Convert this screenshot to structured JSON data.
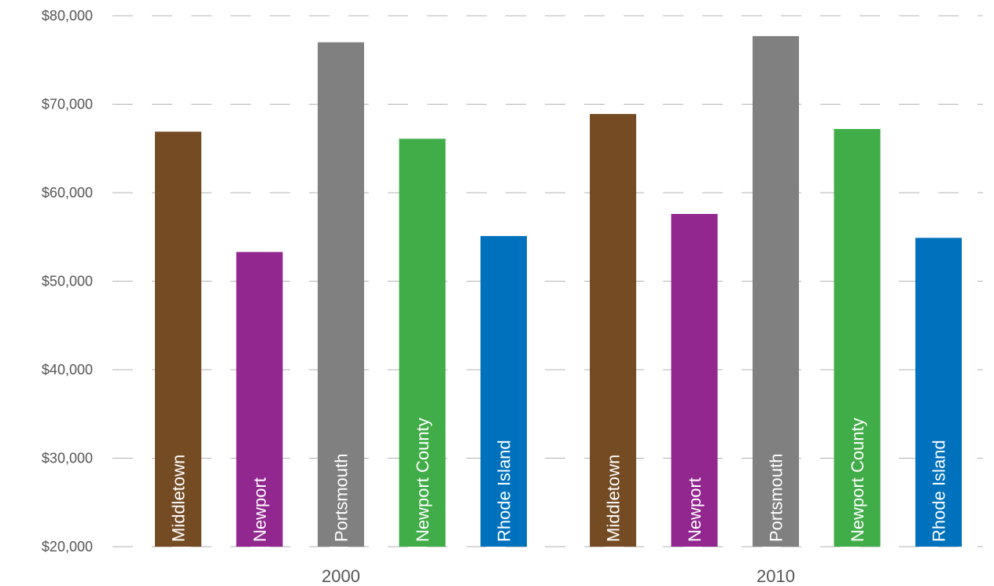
{
  "chart_data": {
    "type": "bar",
    "title": "",
    "xlabel": "",
    "ylabel": "",
    "ylim": [
      20000,
      80000
    ],
    "yticks": [
      {
        "value": 20000,
        "label": "$20,000"
      },
      {
        "value": 30000,
        "label": "$30,000"
      },
      {
        "value": 40000,
        "label": "$40,000"
      },
      {
        "value": 50000,
        "label": "$50,000"
      },
      {
        "value": 60000,
        "label": "$60,000"
      },
      {
        "value": 70000,
        "label": "$70,000"
      },
      {
        "value": 80000,
        "label": "$80,000"
      }
    ],
    "grid": true,
    "legend": "none",
    "categories": [
      "2000",
      "2010"
    ],
    "series": [
      {
        "name": "Middletown",
        "color": "#744B23",
        "values": [
          66900,
          68900
        ]
      },
      {
        "name": "Newport",
        "color": "#92278F",
        "values": [
          53300,
          57600
        ]
      },
      {
        "name": "Portsmouth",
        "color": "#808080",
        "values": [
          77000,
          77700
        ]
      },
      {
        "name": "Newport County",
        "color": "#41AD49",
        "values": [
          66100,
          67200
        ]
      },
      {
        "name": "Rhode Island",
        "color": "#0071BC",
        "values": [
          55100,
          54900
        ]
      }
    ]
  }
}
